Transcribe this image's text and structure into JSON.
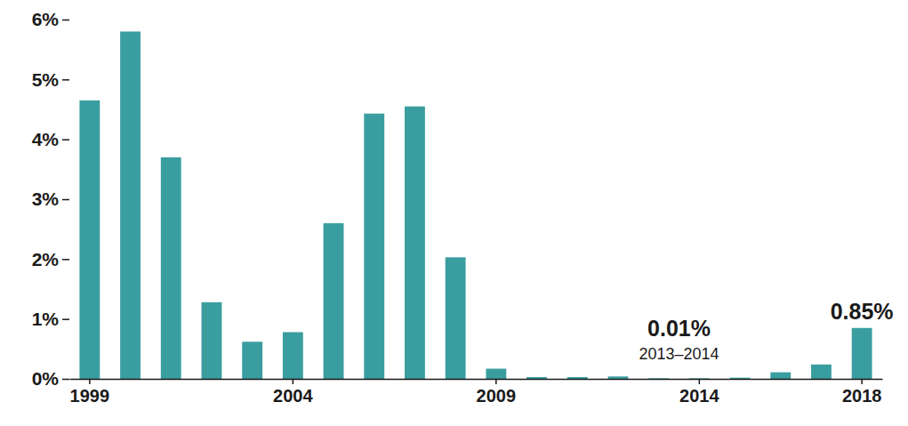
{
  "chart_data": {
    "type": "bar",
    "categories": [
      "1999",
      null,
      null,
      null,
      null,
      "2004",
      null,
      null,
      null,
      null,
      "2009",
      null,
      null,
      null,
      null,
      "2014",
      null,
      null,
      null,
      "2018"
    ],
    "values": [
      4.65,
      5.8,
      3.7,
      1.28,
      0.62,
      0.78,
      2.6,
      4.43,
      4.55,
      2.03,
      0.17,
      0.03,
      0.03,
      0.04,
      0.01,
      0.01,
      0.02,
      0.11,
      0.24,
      0.85
    ],
    "color": "#3a9ea0",
    "ylim": [
      0,
      6
    ],
    "yticks": [
      {
        "value": 0,
        "label": "0%"
      },
      {
        "value": 1,
        "label": "1%"
      },
      {
        "value": 2,
        "label": "2%"
      },
      {
        "value": 3,
        "label": "3%"
      },
      {
        "value": 4,
        "label": "4%"
      },
      {
        "value": 5,
        "label": "5%"
      },
      {
        "value": 6,
        "label": "6%"
      }
    ],
    "grid": false,
    "annotations": [
      {
        "text": "0.01%",
        "subtext": "2013–2014",
        "at": [
          14,
          15
        ]
      },
      {
        "text": "0.85%",
        "at": [
          19
        ]
      }
    ]
  }
}
